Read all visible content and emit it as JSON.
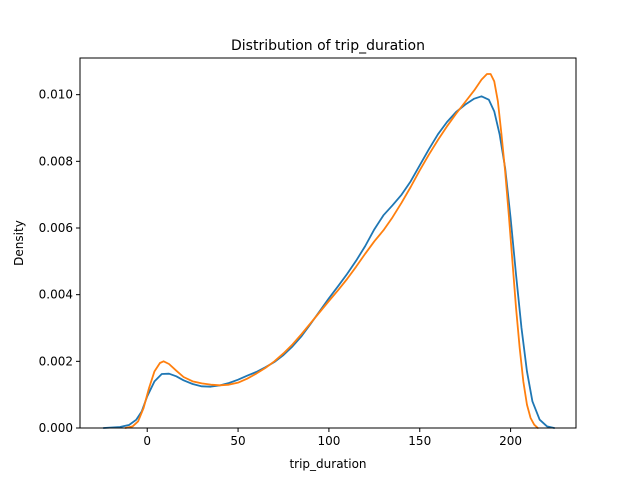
{
  "chart_data": {
    "type": "line",
    "title": "Distribution of trip_duration",
    "xlabel": "trip_duration",
    "ylabel": "Density",
    "xlim": [
      -37,
      236
    ],
    "ylim": [
      0,
      0.0111
    ],
    "grid": false,
    "x_ticks": [
      0,
      50,
      100,
      150,
      200
    ],
    "x_tick_labels": [
      "0",
      "50",
      "100",
      "150",
      "200"
    ],
    "y_ticks": [
      0,
      0.002,
      0.004,
      0.006,
      0.008,
      0.01
    ],
    "y_tick_labels": [
      "0.000",
      "0.002",
      "0.004",
      "0.006",
      "0.008",
      "0.010"
    ],
    "series": [
      {
        "color": "#1f77b4",
        "points": [
          [
            -24,
            0.0
          ],
          [
            -15,
            3e-05
          ],
          [
            -10,
            9e-05
          ],
          [
            -6,
            0.00025
          ],
          [
            -3,
            0.0005
          ],
          [
            0,
            0.00095
          ],
          [
            4,
            0.0014
          ],
          [
            8,
            0.00162
          ],
          [
            12,
            0.00163
          ],
          [
            16,
            0.00155
          ],
          [
            20,
            0.00143
          ],
          [
            25,
            0.00132
          ],
          [
            30,
            0.00125
          ],
          [
            35,
            0.00124
          ],
          [
            40,
            0.00128
          ],
          [
            45,
            0.00135
          ],
          [
            50,
            0.00145
          ],
          [
            55,
            0.00157
          ],
          [
            60,
            0.00168
          ],
          [
            65,
            0.00182
          ],
          [
            70,
            0.00198
          ],
          [
            75,
            0.00219
          ],
          [
            80,
            0.00245
          ],
          [
            85,
            0.00276
          ],
          [
            90,
            0.00313
          ],
          [
            95,
            0.00351
          ],
          [
            100,
            0.00389
          ],
          [
            105,
            0.00425
          ],
          [
            110,
            0.00462
          ],
          [
            115,
            0.00502
          ],
          [
            120,
            0.00546
          ],
          [
            125,
            0.00596
          ],
          [
            130,
            0.00638
          ],
          [
            135,
            0.00668
          ],
          [
            140,
            0.007
          ],
          [
            145,
            0.0074
          ],
          [
            150,
            0.00788
          ],
          [
            155,
            0.00836
          ],
          [
            160,
            0.00881
          ],
          [
            165,
            0.00918
          ],
          [
            170,
            0.00948
          ],
          [
            175,
            0.0097
          ],
          [
            180,
            0.00988
          ],
          [
            184,
            0.00995
          ],
          [
            188,
            0.00985
          ],
          [
            191,
            0.0095
          ],
          [
            194,
            0.0088
          ],
          [
            197,
            0.0078
          ],
          [
            200,
            0.0063
          ],
          [
            203,
            0.0046
          ],
          [
            206,
            0.003
          ],
          [
            209,
            0.0017
          ],
          [
            212,
            0.0008
          ],
          [
            216,
            0.00025
          ],
          [
            220,
            5e-05
          ],
          [
            224,
            0.0
          ]
        ]
      },
      {
        "color": "#ff7f0e",
        "points": [
          [
            -12,
            0.0
          ],
          [
            -8,
            5e-05
          ],
          [
            -5,
            0.0002
          ],
          [
            -2,
            0.0006
          ],
          [
            1,
            0.0012
          ],
          [
            4,
            0.0017
          ],
          [
            7,
            0.00195
          ],
          [
            9,
            0.002
          ],
          [
            12,
            0.00192
          ],
          [
            16,
            0.00172
          ],
          [
            20,
            0.00153
          ],
          [
            25,
            0.0014
          ],
          [
            30,
            0.00134
          ],
          [
            35,
            0.0013
          ],
          [
            40,
            0.00128
          ],
          [
            45,
            0.0013
          ],
          [
            50,
            0.00136
          ],
          [
            55,
            0.00148
          ],
          [
            60,
            0.00163
          ],
          [
            65,
            0.0018
          ],
          [
            70,
            0.002
          ],
          [
            75,
            0.00224
          ],
          [
            80,
            0.00251
          ],
          [
            85,
            0.00282
          ],
          [
            90,
            0.00315
          ],
          [
            95,
            0.00348
          ],
          [
            100,
            0.00381
          ],
          [
            105,
            0.00413
          ],
          [
            110,
            0.00447
          ],
          [
            115,
            0.00484
          ],
          [
            120,
            0.00523
          ],
          [
            125,
            0.0056
          ],
          [
            130,
            0.00593
          ],
          [
            135,
            0.00632
          ],
          [
            140,
            0.00676
          ],
          [
            145,
            0.00723
          ],
          [
            150,
            0.00773
          ],
          [
            155,
            0.0082
          ],
          [
            160,
            0.00864
          ],
          [
            165,
            0.00905
          ],
          [
            170,
            0.00943
          ],
          [
            175,
            0.00978
          ],
          [
            180,
            0.01013
          ],
          [
            184,
            0.01045
          ],
          [
            187,
            0.01062
          ],
          [
            189,
            0.01062
          ],
          [
            191,
            0.0104
          ],
          [
            193,
            0.0098
          ],
          [
            195,
            0.0088
          ],
          [
            197,
            0.0077
          ],
          [
            199,
            0.0064
          ],
          [
            201,
            0.005
          ],
          [
            203,
            0.0036
          ],
          [
            205,
            0.0024
          ],
          [
            207,
            0.0014
          ],
          [
            209,
            0.0007
          ],
          [
            211,
            0.0003
          ],
          [
            213,
            0.0001
          ],
          [
            215,
            0.0
          ]
        ]
      }
    ]
  }
}
